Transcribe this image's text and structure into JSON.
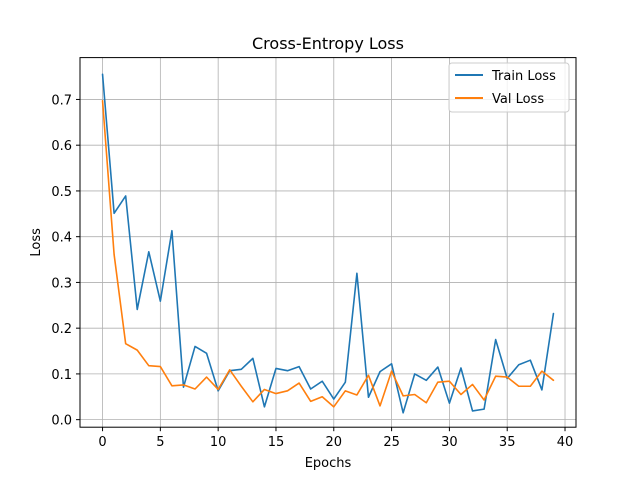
{
  "chart_data": {
    "type": "line",
    "title": "Cross-Entropy Loss",
    "xlabel": "Epochs",
    "ylabel": "Loss",
    "xlim": [
      -1.95,
      40.95
    ],
    "ylim": [
      -0.0165,
      0.7915
    ],
    "xticks": [
      0,
      5,
      10,
      15,
      20,
      25,
      30,
      35,
      40
    ],
    "yticks": [
      0.0,
      0.1,
      0.2,
      0.3,
      0.4,
      0.5,
      0.6,
      0.7
    ],
    "xtick_labels": [
      "0",
      "5",
      "10",
      "15",
      "20",
      "25",
      "30",
      "35",
      "40"
    ],
    "ytick_labels": [
      "0.0",
      "0.1",
      "0.2",
      "0.3",
      "0.4",
      "0.5",
      "0.6",
      "0.7"
    ],
    "grid": true,
    "legend_position": "top-right",
    "x": [
      0,
      1,
      2,
      3,
      4,
      5,
      6,
      7,
      8,
      9,
      10,
      11,
      12,
      13,
      14,
      15,
      16,
      17,
      18,
      19,
      20,
      21,
      22,
      23,
      24,
      25,
      26,
      27,
      28,
      29,
      30,
      31,
      32,
      33,
      34,
      35,
      36,
      37,
      38,
      39
    ],
    "series": [
      {
        "name": "Train Loss",
        "color": "#1f77b4",
        "values": [
          0.755,
          0.451,
          0.489,
          0.241,
          0.367,
          0.259,
          0.413,
          0.071,
          0.16,
          0.145,
          0.063,
          0.107,
          0.11,
          0.134,
          0.028,
          0.112,
          0.107,
          0.116,
          0.067,
          0.084,
          0.045,
          0.082,
          0.32,
          0.049,
          0.105,
          0.122,
          0.015,
          0.1,
          0.086,
          0.115,
          0.036,
          0.113,
          0.019,
          0.023,
          0.175,
          0.09,
          0.12,
          0.13,
          0.065,
          0.232
        ]
      },
      {
        "name": "Val Loss",
        "color": "#ff7f0e",
        "values": [
          0.697,
          0.361,
          0.166,
          0.152,
          0.118,
          0.116,
          0.074,
          0.076,
          0.067,
          0.093,
          0.066,
          0.109,
          0.073,
          0.039,
          0.066,
          0.057,
          0.063,
          0.08,
          0.04,
          0.05,
          0.028,
          0.063,
          0.054,
          0.097,
          0.03,
          0.106,
          0.052,
          0.055,
          0.037,
          0.082,
          0.084,
          0.055,
          0.077,
          0.043,
          0.095,
          0.093,
          0.073,
          0.073,
          0.106,
          0.086
        ]
      }
    ]
  }
}
